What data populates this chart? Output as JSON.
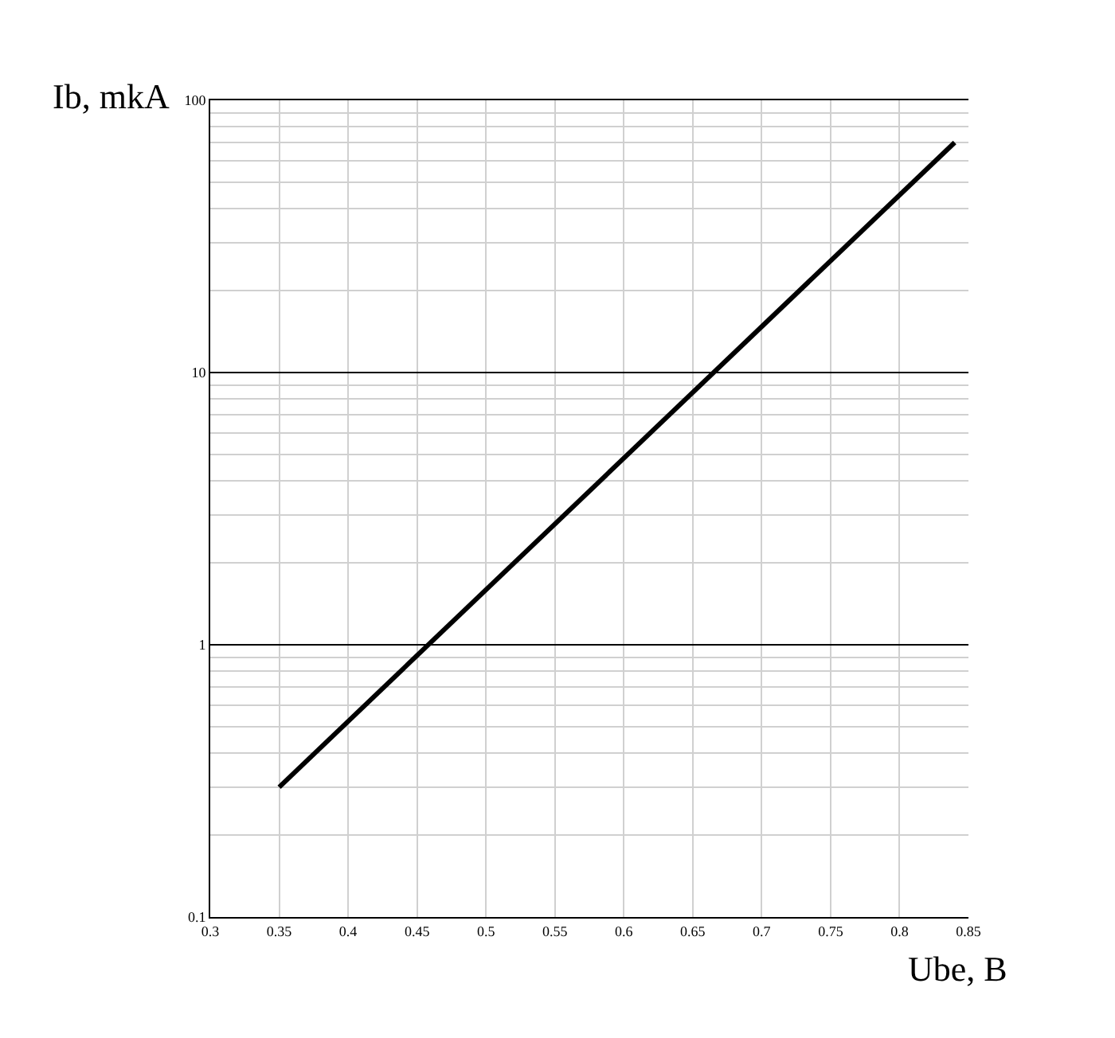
{
  "chart_data": {
    "type": "line",
    "xlabel": "Ube, B",
    "ylabel": "Ib, mkA",
    "x": [
      0.35,
      0.84
    ],
    "series": [
      {
        "color": "#000000",
        "values": [
          0.3,
          70
        ]
      }
    ],
    "xlim": [
      0.3,
      0.85
    ],
    "xticks": [
      0.3,
      0.35,
      0.4,
      0.45,
      0.5,
      0.55,
      0.6,
      0.65,
      0.7,
      0.75,
      0.8,
      0.85
    ],
    "ylim": [
      0.1,
      100
    ],
    "yticks": [
      0.1,
      1,
      10,
      100
    ],
    "log": "y",
    "grid": true,
    "legend": false,
    "marker": "none",
    "line_style": "solid"
  }
}
